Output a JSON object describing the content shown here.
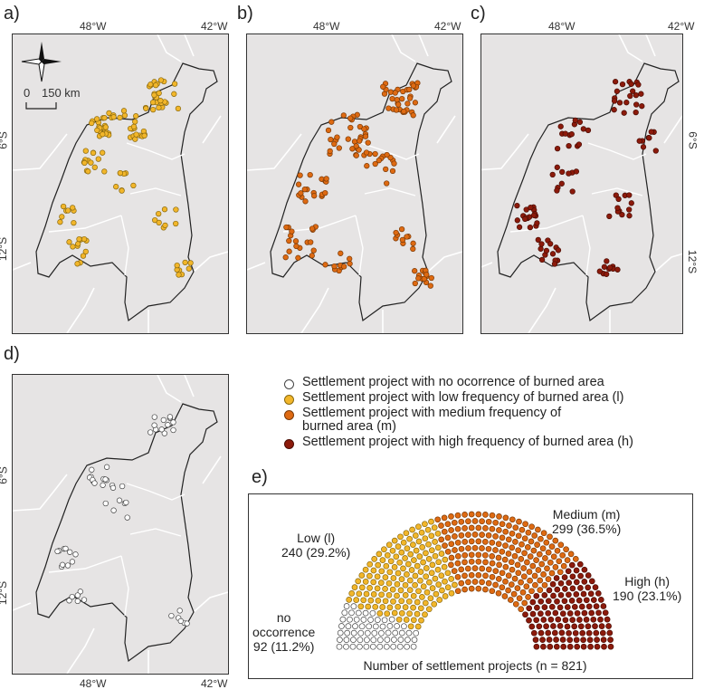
{
  "panels": {
    "a": {
      "label": "a)"
    },
    "b": {
      "label": "b)"
    },
    "c": {
      "label": "c)"
    },
    "d": {
      "label": "d)"
    },
    "e": {
      "label": "e)"
    }
  },
  "axes": {
    "lon_left": "48°W",
    "lon_right": "42°W",
    "lat_top": "6°S",
    "lat_bottom": "12°S"
  },
  "map_elements": {
    "north_arrow": "compass-rose-icon",
    "scale_bar_start": "0",
    "scale_bar_end": "150 km"
  },
  "legend": {
    "items": [
      {
        "text": "Settlement project with no ocorrence of burned area",
        "color": "#ffffff"
      },
      {
        "text": "Settlement project with low frequency of burned area (l)",
        "color": "#f2b62a"
      },
      {
        "text": "Settlement project with medium frequency of burned area (m)",
        "color": "#de6a12"
      },
      {
        "text": "Settlement project with high frequency of burned area (h)",
        "color": "#8c1a0b"
      }
    ]
  },
  "colors": {
    "none": "#ffffff",
    "low": "#f2b62a",
    "medium": "#de6a12",
    "high": "#8c1a0b",
    "map_background": "#e6e4e4"
  },
  "chart_data": {
    "type": "parliament",
    "title": "Number of settlement projects (n = 821)",
    "total": 821,
    "categories": [
      {
        "key": "none",
        "name_line1": "no",
        "name_line2": "occorrence",
        "value_text": "92 (11.2%)",
        "count": 92,
        "percent": 11.2
      },
      {
        "key": "low",
        "name_line1": "Low (l)",
        "value_text": "240 (29.2%)",
        "count": 240,
        "percent": 29.2
      },
      {
        "key": "medium",
        "name_line1": "Medium (m)",
        "value_text": "299 (36.5%)",
        "count": 299,
        "percent": 36.5
      },
      {
        "key": "high",
        "name_line1": "High (h)",
        "value_text": "190 (23.1%)",
        "count": 190,
        "percent": 23.1
      }
    ]
  }
}
